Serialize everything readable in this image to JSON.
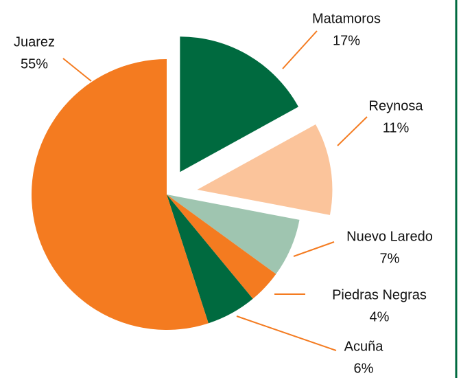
{
  "chart_data": {
    "type": "pie",
    "categories": [
      "Matamoros",
      "Reynosa",
      "Nuevo Laredo",
      "Piedras Negras",
      "Acuña",
      "Juarez"
    ],
    "values": [
      17,
      11,
      7,
      4,
      6,
      55
    ],
    "value_labels": [
      "17%",
      "11%",
      "7%",
      "4%",
      "6%",
      "55%"
    ],
    "colors": [
      "#006a3f",
      "#fbc49b",
      "#9fc5b0",
      "#f47b20",
      "#006a3f",
      "#f47b20"
    ]
  }
}
